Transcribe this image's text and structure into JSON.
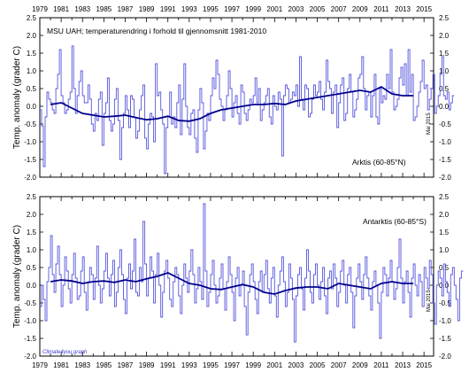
{
  "colors": {
    "monthly_line": "#5555dd",
    "smooth_line": "#00008b",
    "axis": "#000000",
    "credit": "#3a3acc",
    "background": "#ffffff"
  },
  "chart_data": [
    {
      "type": "line",
      "title": "MSU UAH; temperaturendring i forhold til gjennomsnitt 1981-2010",
      "region_label": "Arktis (60-85°N)",
      "ylabel": "Temp. anomaly (grader C)",
      "right_note": "Mai 2015",
      "xlim": [
        1979,
        2015.9
      ],
      "ylim": [
        -2.0,
        2.5
      ],
      "yticks": [
        "2.5",
        "2.0",
        "1.5",
        "1.0",
        "0.5",
        "0.0",
        "-0.5",
        "-1.0",
        "-1.5",
        "-2.0"
      ],
      "xticks": [
        "1979",
        "1981",
        "1983",
        "1985",
        "1987",
        "1989",
        "1991",
        "1993",
        "1995",
        "1997",
        "1999",
        "2001",
        "2003",
        "2005",
        "2007",
        "2009",
        "2011",
        "2013",
        "2015"
      ],
      "series": [
        {
          "role": "monthly",
          "x_start": 1979.0,
          "x_step": 0.16667,
          "values": [
            -0.1,
            -0.55,
            -1.7,
            -0.3,
            0.4,
            0.2,
            0.1,
            -0.1,
            -0.2,
            0.5,
            0.9,
            1.6,
            0.3,
            0.1,
            -0.2,
            -0.1,
            0.2,
            0.4,
            1.7,
            0.5,
            -0.2,
            0.3,
            0.7,
            1.0,
            0.3,
            0.1,
            0.1,
            0.6,
            0.2,
            -0.5,
            -0.7,
            -0.2,
            -0.4,
            0.2,
            0.4,
            -1.1,
            -0.2,
            0.1,
            0.8,
            -0.4,
            -0.7,
            -0.5,
            0.2,
            0.5,
            -0.4,
            -1.5,
            -0.6,
            -0.2,
            0.3,
            -0.1,
            -0.6,
            0.3,
            0.2,
            -0.3,
            -0.9,
            -0.7,
            -0.1,
            0.3,
            0.6,
            -0.9,
            -1.2,
            -0.5,
            -0.2,
            -0.3,
            -1.0,
            1.2,
            0.3,
            0.4,
            -0.1,
            -0.5,
            -1.9,
            -0.6,
            -0.3,
            0.4,
            -0.5,
            -0.3,
            -0.6,
            0.1,
            0.6,
            -0.8,
            0.2,
            1.2,
            0.0,
            -0.6,
            -0.8,
            -0.2,
            -0.1,
            -0.9,
            -1.3,
            -0.1,
            0.5,
            0.1,
            -1.2,
            -0.7,
            -0.2,
            -0.4,
            0.3,
            0.8,
            0.5,
            1.3,
            0.9,
            0.2,
            0.0,
            -0.4,
            -0.1,
            0.3,
            1.0,
            0.5,
            -0.3,
            0.1,
            0.3,
            -0.2,
            -0.5,
            0.6,
            0.4,
            -0.2,
            -0.4,
            -0.1,
            0.2,
            0.1,
            0.3,
            0.8,
            0.1,
            0.5,
            -0.4,
            -0.1,
            0.1,
            0.3,
            0.5,
            -0.3,
            -0.5,
            0.3,
            0.0,
            -0.1,
            0.4,
            0.2,
            -1.4,
            0.3,
            0.6,
            0.5,
            0.1,
            0.2,
            0.4,
            0.3,
            0.6,
            0.0,
            1.4,
            0.2,
            -0.1,
            0.6,
            0.5,
            -0.3,
            -0.2,
            0.2,
            0.6,
            0.3,
            0.4,
            0.7,
            0.2,
            -0.1,
            0.4,
            1.3,
            0.7,
            0.5,
            -0.2,
            0.4,
            0.6,
            -0.6,
            0.1,
            0.6,
            0.8,
            -0.4,
            -0.2,
            0.5,
            0.9,
            0.4,
            -0.3,
            -0.1,
            0.2,
            0.8,
            0.9,
            1.4,
            0.5,
            -0.1,
            0.3,
            0.4,
            -0.3,
            0.3,
            0.9,
            -0.3,
            -0.5,
            0.5,
            0.1,
            0.3,
            0.2,
            0.9,
            0.5,
            1.6,
            0.4,
            -0.1,
            0.0,
            0.2,
            0.8,
            1.1,
            0.6,
            1.2,
            0.3,
            1.6,
            0.4,
            0.9,
            -0.4,
            -0.3,
            0.0,
            0.4,
            0.7,
            1.3,
            0.5,
            0.6,
            -0.1,
            0.2,
            0.5,
            0.9,
            -0.2,
            0.0,
            0.3,
            0.9,
            1.4,
            0.3,
            0.2,
            0.4,
            -0.1,
            0.1,
            0.3
          ]
        },
        {
          "role": "smoothed",
          "x": [
            1980.0,
            1981.0,
            1982.0,
            1983.0,
            1984.0,
            1985.0,
            1986.0,
            1987.0,
            1988.0,
            1989.0,
            1990.0,
            1991.0,
            1992.0,
            1993.0,
            1994.0,
            1995.0,
            1996.0,
            1997.0,
            1998.0,
            1999.0,
            2000.0,
            2001.0,
            2002.0,
            2003.0,
            2004.0,
            2005.0,
            2006.0,
            2007.0,
            2008.0,
            2009.0,
            2010.0,
            2011.0,
            2012.0,
            2013.0,
            2014.0
          ],
          "values": [
            0.05,
            0.1,
            -0.05,
            -0.2,
            -0.25,
            -0.3,
            -0.28,
            -0.25,
            -0.32,
            -0.38,
            -0.35,
            -0.28,
            -0.4,
            -0.42,
            -0.35,
            -0.2,
            -0.1,
            -0.05,
            0.0,
            0.05,
            0.05,
            0.08,
            0.05,
            0.15,
            0.2,
            0.25,
            0.3,
            0.35,
            0.4,
            0.45,
            0.4,
            0.55,
            0.35,
            0.3,
            0.3
          ]
        }
      ]
    },
    {
      "type": "line",
      "title": "",
      "region_label": "Antarktis (60-85°S)",
      "ylabel": "Temp. anomaly (grader C)",
      "right_note": "Mai 2015",
      "credit": "Climate4you graph",
      "xlim": [
        1979,
        2015.9
      ],
      "ylim": [
        -2.0,
        2.5
      ],
      "yticks": [
        "2.5",
        "2.0",
        "1.5",
        "1.0",
        "0.5",
        "0.0",
        "-0.5",
        "-1.0",
        "-1.5",
        "-2.0"
      ],
      "xticks": [
        "1979",
        "1981",
        "1983",
        "1985",
        "1987",
        "1989",
        "1991",
        "1993",
        "1995",
        "1997",
        "1999",
        "2001",
        "2003",
        "2005",
        "2007",
        "2009",
        "2011",
        "2013",
        "2015"
      ],
      "series": [
        {
          "role": "monthly",
          "x_start": 1979.0,
          "x_step": 0.16667,
          "values": [
            -0.6,
            0.0,
            -0.4,
            -1.0,
            0.1,
            0.5,
            1.4,
            0.3,
            -0.2,
            0.6,
            1.1,
            0.3,
            -0.6,
            0.0,
            0.8,
            0.4,
            -0.1,
            -0.5,
            0.3,
            0.9,
            0.2,
            -0.4,
            -0.3,
            0.4,
            0.8,
            -0.2,
            -0.7,
            0.1,
            0.5,
            0.3,
            -0.4,
            0.2,
            1.1,
            0.0,
            -0.5,
            -0.1,
            0.4,
            0.9,
            0.2,
            -0.3,
            0.3,
            0.7,
            -0.6,
            -0.2,
            0.5,
            1.0,
            0.3,
            -0.4,
            -0.8,
            0.2,
            0.6,
            -0.1,
            0.4,
            1.3,
            -0.2,
            -0.3,
            0.5,
            0.1,
            1.8,
            0.6,
            -0.3,
            0.2,
            0.8,
            0.4,
            -0.5,
            0.3,
            0.9,
            0.0,
            -0.9,
            -0.2,
            0.4,
            0.7,
            0.2,
            -0.4,
            -0.6,
            0.1,
            0.5,
            0.3,
            -0.3,
            -0.8,
            0.0,
            0.6,
            0.2,
            -0.2,
            0.4,
            1.0,
            0.3,
            -0.5,
            -0.1,
            0.5,
            0.1,
            -0.4,
            2.3,
            0.4,
            -0.6,
            -0.2,
            0.3,
            0.7,
            0.0,
            -0.5,
            -0.3,
            0.2,
            0.6,
            -0.1,
            -0.7,
            0.1,
            0.8,
            0.3,
            -0.2,
            -1.0,
            0.2,
            0.5,
            -0.3,
            0.0,
            0.4,
            -0.6,
            -1.4,
            -0.2,
            0.3,
            0.6,
            0.1,
            -0.4,
            -0.8,
            0.1,
            0.4,
            -0.2,
            0.3,
            0.7,
            -0.1,
            -0.5,
            0.2,
            0.5,
            -0.3,
            -0.9,
            0.0,
            0.4,
            0.8,
            0.1,
            -0.6,
            -0.2,
            0.6,
            0.2,
            -0.4,
            -1.6,
            -0.3,
            0.3,
            0.5,
            -0.1,
            -0.7,
            0.2,
            1.0,
            0.4,
            -0.2,
            -0.5,
            0.3,
            0.6,
            0.0,
            -0.4,
            0.1,
            0.5,
            -0.3,
            -0.8,
            0.2,
            0.4,
            -0.1,
            0.6,
            0.2,
            -0.6,
            -0.2,
            0.4,
            0.7,
            0.0,
            -0.5,
            0.3,
            0.5,
            -0.2,
            -1.2,
            -0.3,
            0.2,
            0.6,
            0.1,
            -0.4,
            0.3,
            0.8,
            0.2,
            -0.3,
            -0.7,
            0.1,
            0.4,
            0.0,
            -0.5,
            -1.5,
            -0.2,
            0.5,
            0.3,
            -0.3,
            0.2,
            0.7,
            0.1,
            -0.4,
            -0.1,
            0.5,
            1.3,
            0.2,
            -0.5,
            0.1,
            0.4,
            -0.2,
            -0.9,
            0.2,
            0.6,
            0.0,
            -0.3,
            0.3,
            0.1,
            -0.6,
            0.5,
            0.2,
            -0.1,
            0.7,
            0.3,
            -0.5,
            -1.1,
            0.0,
            0.4,
            0.2,
            -0.3,
            0.6,
            0.1,
            -0.2,
            -0.6,
            0.3,
            0.5,
            0.0,
            -0.4,
            -1.0,
            0.2,
            0.4
          ]
        },
        {
          "role": "smoothed",
          "x": [
            1980.0,
            1981.0,
            1982.0,
            1983.0,
            1984.0,
            1985.0,
            1986.0,
            1987.0,
            1988.0,
            1989.0,
            1990.0,
            1991.0,
            1992.0,
            1993.0,
            1994.0,
            1995.0,
            1996.0,
            1997.0,
            1998.0,
            1999.0,
            2000.0,
            2001.0,
            2002.0,
            2003.0,
            2004.0,
            2005.0,
            2006.0,
            2007.0,
            2008.0,
            2009.0,
            2010.0,
            2011.0,
            2012.0,
            2013.0,
            2014.0
          ],
          "values": [
            0.1,
            0.15,
            0.12,
            0.05,
            0.1,
            0.12,
            0.08,
            0.15,
            0.1,
            0.18,
            0.25,
            0.35,
            0.2,
            0.05,
            0.0,
            -0.1,
            -0.12,
            -0.05,
            0.02,
            -0.05,
            -0.2,
            -0.25,
            -0.15,
            -0.08,
            -0.05,
            -0.05,
            -0.1,
            0.05,
            0.0,
            -0.05,
            -0.1,
            0.05,
            0.1,
            0.05,
            0.05
          ]
        }
      ]
    }
  ]
}
